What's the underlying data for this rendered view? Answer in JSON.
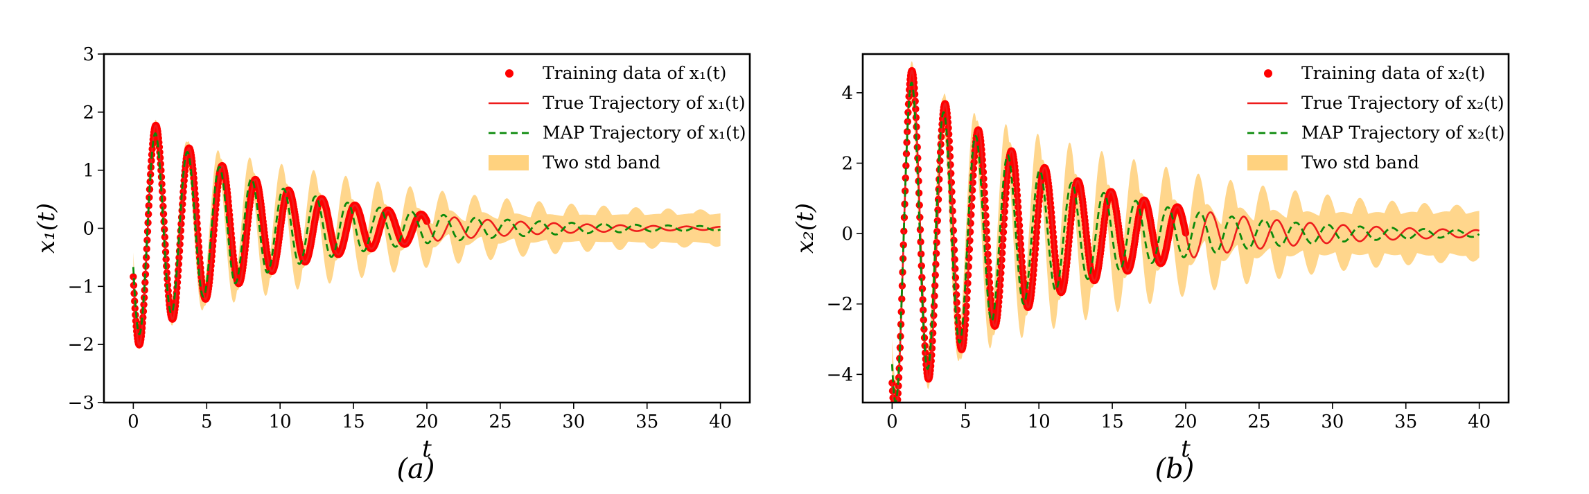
{
  "chart_data": [
    {
      "type": "line",
      "panel_caption": "(a)",
      "xlabel": "t",
      "ylabel": "x₁(t)",
      "xlim": [
        -2,
        42
      ],
      "ylim": [
        -3,
        3
      ],
      "xticks": [
        0,
        5,
        10,
        15,
        20,
        25,
        30,
        35,
        40
      ],
      "yticks": [
        -3,
        -2,
        -1,
        0,
        1,
        2,
        3
      ],
      "xtick_labels": [
        "0",
        "5",
        "10",
        "15",
        "20",
        "25",
        "30",
        "35",
        "40"
      ],
      "ytick_labels": [
        "−3",
        "−2",
        "−1",
        "0",
        "1",
        "2",
        "3"
      ],
      "legend_position": "top-right",
      "grid": false,
      "colors": {
        "training": "#ff0000",
        "true": "#ee1c1c",
        "map": "#0a8a0a",
        "band": "#ffd27f"
      },
      "legend": [
        {
          "name": "Training data of x₁(t)",
          "style": "marker"
        },
        {
          "name": "True Trajectory of x₁(t)",
          "style": "solid"
        },
        {
          "name": "MAP Trajectory of x₁(t)",
          "style": "dashed"
        },
        {
          "name": "Two std band",
          "style": "band"
        }
      ],
      "series": [
        {
          "name": "True Trajectory of x₁(t)",
          "kind": "damped_oscillation",
          "amplitude": 2.1,
          "decay": 0.11,
          "omega": 2.78,
          "phase": 3.55,
          "t_range": [
            0,
            40
          ]
        },
        {
          "name": "MAP Trajectory of x₁(t)",
          "kind": "damped_oscillation",
          "amplitude": 1.9,
          "decay": 0.1,
          "omega": 2.88,
          "phase": 3.5,
          "t_range": [
            0,
            40
          ]
        },
        {
          "name": "Training data of x₁(t)",
          "kind": "samples",
          "t_range": [
            0,
            20
          ],
          "n_points": 700
        },
        {
          "name": "Two std band",
          "kind": "band",
          "half_width_start": 0.15,
          "half_width_end": 0.25
        }
      ]
    },
    {
      "type": "line",
      "panel_caption": "(b)",
      "xlabel": "t",
      "ylabel": "x₂(t)",
      "xlim": [
        -2,
        42
      ],
      "ylim": [
        -4.8,
        5.1
      ],
      "xticks": [
        0,
        5,
        10,
        15,
        20,
        25,
        30,
        35,
        40
      ],
      "yticks": [
        -4,
        -2,
        0,
        2,
        4
      ],
      "xtick_labels": [
        "0",
        "5",
        "10",
        "15",
        "20",
        "25",
        "30",
        "35",
        "40"
      ],
      "ytick_labels": [
        "−4",
        "−2",
        "0",
        "2",
        "4"
      ],
      "legend_position": "top-right",
      "grid": false,
      "colors": {
        "training": "#ff0000",
        "true": "#ee1c1c",
        "map": "#0a8a0a",
        "band": "#ffd27f"
      },
      "legend": [
        {
          "name": "Training data of x₂(t)",
          "style": "marker"
        },
        {
          "name": "True Trajectory of x₂(t)",
          "style": "solid"
        },
        {
          "name": "MAP Trajectory of x₂(t)",
          "style": "dashed"
        },
        {
          "name": "Two std band",
          "style": "band"
        }
      ],
      "series": [
        {
          "name": "True Trajectory of x₂(t)",
          "kind": "damped_oscillation",
          "amplitude": 5.3,
          "decay": 0.1,
          "omega": 2.78,
          "phase": 4.07,
          "t_range": [
            0,
            40
          ]
        },
        {
          "name": "MAP Trajectory of x₂(t)",
          "kind": "damped_oscillation",
          "amplitude": 4.9,
          "decay": 0.1,
          "omega": 2.88,
          "phase": 4.0,
          "t_range": [
            0,
            40
          ]
        },
        {
          "name": "Training data of x₂(t)",
          "kind": "samples",
          "t_range": [
            0,
            20
          ],
          "n_points": 700
        },
        {
          "name": "Two std band",
          "kind": "band",
          "half_width_start": 0.4,
          "half_width_end": 0.6
        }
      ]
    }
  ]
}
